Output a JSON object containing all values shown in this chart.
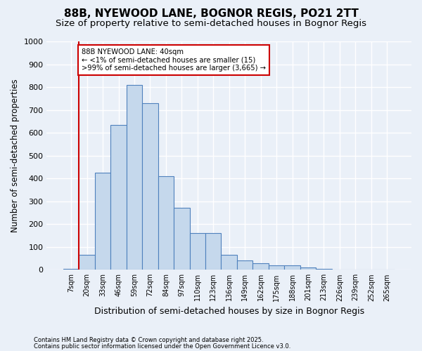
{
  "title1": "88B, NYEWOOD LANE, BOGNOR REGIS, PO21 2TT",
  "title2": "Size of property relative to semi-detached houses in Bognor Regis",
  "xlabel": "Distribution of semi-detached houses by size in Bognor Regis",
  "ylabel": "Number of semi-detached properties",
  "footer1": "Contains HM Land Registry data © Crown copyright and database right 2025.",
  "footer2": "Contains public sector information licensed under the Open Government Licence v3.0.",
  "bins": [
    "7sqm",
    "20sqm",
    "33sqm",
    "46sqm",
    "59sqm",
    "72sqm",
    "84sqm",
    "97sqm",
    "110sqm",
    "123sqm",
    "136sqm",
    "149sqm",
    "162sqm",
    "175sqm",
    "188sqm",
    "201sqm",
    "213sqm",
    "226sqm",
    "239sqm",
    "252sqm",
    "265sqm"
  ],
  "values": [
    5,
    65,
    425,
    635,
    810,
    730,
    410,
    270,
    160,
    160,
    65,
    40,
    28,
    18,
    18,
    10,
    5,
    2,
    1,
    0,
    0
  ],
  "bar_color": "#c5d8ec",
  "bar_edge_color": "#4f81bd",
  "vline_pos": 0.5,
  "vline_color": "#cc0000",
  "annotation_text": "88B NYEWOOD LANE: 40sqm\n← <1% of semi-detached houses are smaller (15)\n>99% of semi-detached houses are larger (3,665) →",
  "annotation_box_color": "white",
  "annotation_box_edge_color": "#cc0000",
  "ylim": [
    0,
    1000
  ],
  "yticks": [
    0,
    100,
    200,
    300,
    400,
    500,
    600,
    700,
    800,
    900,
    1000
  ],
  "bg_color": "#eaf0f8",
  "grid_color": "white",
  "title1_fontsize": 11,
  "title2_fontsize": 9.5,
  "xlabel_fontsize": 9,
  "ylabel_fontsize": 8.5
}
